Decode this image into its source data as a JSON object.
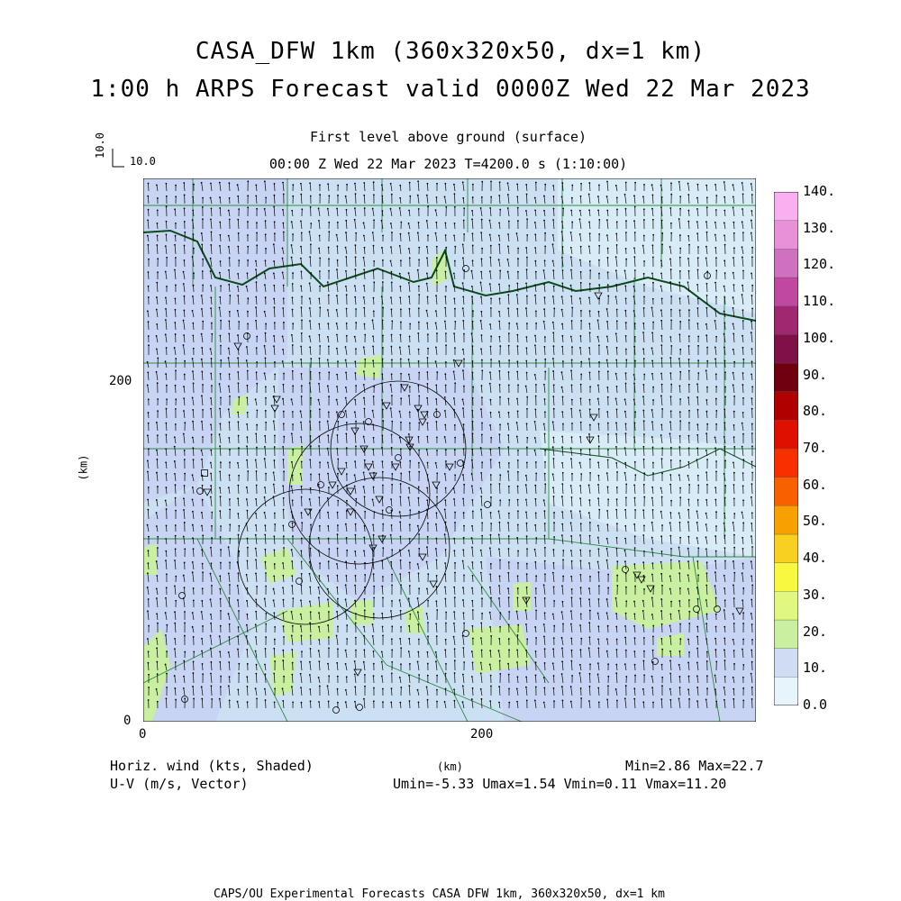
{
  "header": {
    "title_line1": "CASA_DFW 1km (360x320x50, dx=1 km)",
    "title_line2": "1:00 h ARPS Forecast valid 0000Z Wed 22 Mar 2023",
    "level": "First level above ground (surface)",
    "time_info": "00:00 Z Wed 22 Mar 2023    T=4200.0 s (1:10:00)"
  },
  "reference_vector": {
    "vertical_label": "10.0",
    "horizontal_label": "10.0"
  },
  "axes": {
    "y_unit": "(km)",
    "x_unit": "(km)",
    "y_ticks": [
      "0",
      "200"
    ],
    "x_ticks": [
      "0",
      "200"
    ]
  },
  "colorbar": {
    "labels": [
      "0.0",
      "10.",
      "20.",
      "30.",
      "40.",
      "50.",
      "60.",
      "70.",
      "80.",
      "90.",
      "100.",
      "110.",
      "120.",
      "130.",
      "140."
    ],
    "colors": [
      "#e8f4fb",
      "#d0dcf4",
      "#c8f0a0",
      "#e0f880",
      "#f8f840",
      "#f8d020",
      "#f8a000",
      "#f86000",
      "#f83000",
      "#e01000",
      "#b00000",
      "#700010",
      "#801048",
      "#a02870",
      "#c048a0",
      "#d070c0",
      "#e890d8",
      "#f8b0f0"
    ]
  },
  "info": {
    "field_label": "Horiz. wind (kts, Shaded)",
    "vector_label": "U-V (m/s, Vector)",
    "minmax": "Min=2.86 Max=22.7",
    "uv_stats": "Umin=-5.33 Umax=1.54 Vmin=0.11 Vmax=11.20"
  },
  "footer": {
    "text": "CAPS/OU Experimental Forecasts  CASA DFW 1km, 360x320x50, dx=1 km"
  },
  "map_colors": {
    "light_blue": "#cce0f4",
    "lavender": "#c8d4f4",
    "pale_cyan": "#d8ecf8",
    "light_green": "#c8f0a0",
    "county_line": "#2e8b3e",
    "border_line": "#0a4a1a",
    "vector": "#000000",
    "symbol": "#000000"
  }
}
